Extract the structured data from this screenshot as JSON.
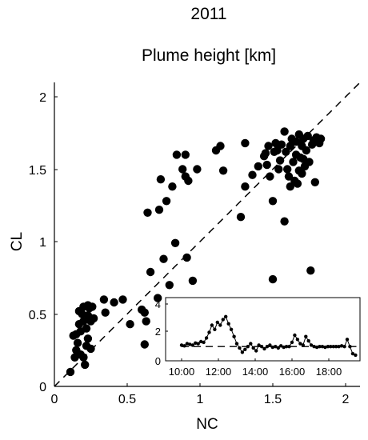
{
  "chart_data": [
    {
      "type": "scatter",
      "suptitle": "2011",
      "title": "Plume height [km]",
      "xlabel": "NC",
      "ylabel": "CL",
      "xlim": [
        0,
        2.1
      ],
      "ylim": [
        0,
        2.1
      ],
      "x_ticks": [
        "0",
        "0.5",
        "1",
        "1.5",
        "2"
      ],
      "y_ticks": [
        "0",
        "0.5",
        "1",
        "1.5",
        "2"
      ],
      "reference_line": {
        "style": "dashed",
        "equation": "y = x"
      },
      "grid": false,
      "series": [
        {
          "marker": "filled-circle",
          "color": "#000000",
          "points": [
            [
              0.11,
              0.1
            ],
            [
              0.14,
              0.2
            ],
            [
              0.15,
              0.25
            ],
            [
              0.16,
              0.3
            ],
            [
              0.13,
              0.35
            ],
            [
              0.15,
              0.36
            ],
            [
              0.18,
              0.22
            ],
            [
              0.18,
              0.38
            ],
            [
              0.17,
              0.52
            ],
            [
              0.19,
              0.5
            ],
            [
              0.2,
              0.45
            ],
            [
              0.2,
              0.55
            ],
            [
              0.2,
              0.2
            ],
            [
              0.21,
              0.15
            ],
            [
              0.22,
              0.28
            ],
            [
              0.22,
              0.4
            ],
            [
              0.23,
              0.33
            ],
            [
              0.23,
              0.49
            ],
            [
              0.23,
              0.56
            ],
            [
              0.24,
              0.54
            ],
            [
              0.25,
              0.26
            ],
            [
              0.25,
              0.45
            ],
            [
              0.26,
              0.55
            ],
            [
              0.27,
              0.47
            ],
            [
              0.17,
              0.43
            ],
            [
              0.35,
              0.51
            ],
            [
              0.34,
              0.6
            ],
            [
              0.41,
              0.58
            ],
            [
              0.47,
              0.6
            ],
            [
              0.52,
              0.43
            ],
            [
              0.6,
              0.53
            ],
            [
              0.62,
              0.51
            ],
            [
              0.63,
              0.45
            ],
            [
              0.62,
              0.29
            ],
            [
              0.64,
              1.2
            ],
            [
              0.66,
              0.79
            ],
            [
              0.71,
              0.61
            ],
            [
              0.72,
              1.22
            ],
            [
              0.73,
              1.43
            ],
            [
              0.75,
              0.88
            ],
            [
              0.77,
              1.28
            ],
            [
              0.79,
              0.7
            ],
            [
              0.81,
              1.38
            ],
            [
              0.84,
              1.6
            ],
            [
              0.83,
              0.99
            ],
            [
              0.88,
              1.5
            ],
            [
              0.9,
              1.6
            ],
            [
              0.92,
              1.42
            ],
            [
              0.9,
              1.45
            ],
            [
              0.95,
              0.73
            ],
            [
              0.91,
              0.89
            ],
            [
              0.98,
              1.5
            ],
            [
              1.11,
              1.63
            ],
            [
              1.14,
              1.66
            ],
            [
              1.16,
              1.49
            ],
            [
              1.28,
              1.17
            ],
            [
              1.31,
              1.38
            ],
            [
              1.31,
              1.68
            ],
            [
              1.36,
              1.46
            ],
            [
              1.4,
              1.52
            ],
            [
              1.44,
              1.59
            ],
            [
              1.45,
              1.61
            ],
            [
              1.46,
              1.53
            ],
            [
              1.47,
              1.66
            ],
            [
              1.48,
              1.45
            ],
            [
              1.5,
              1.28
            ],
            [
              1.5,
              0.74
            ],
            [
              1.51,
              1.62
            ],
            [
              1.52,
              1.68
            ],
            [
              1.53,
              1.63
            ],
            [
              1.54,
              1.5
            ],
            [
              1.55,
              1.56
            ],
            [
              1.56,
              1.67
            ],
            [
              1.58,
              1.14
            ],
            [
              1.58,
              1.76
            ],
            [
              1.59,
              1.62
            ],
            [
              1.6,
              1.5
            ],
            [
              1.61,
              1.45
            ],
            [
              1.62,
              1.66
            ],
            [
              1.62,
              1.38
            ],
            [
              1.63,
              1.71
            ],
            [
              1.64,
              1.55
            ],
            [
              1.65,
              1.42
            ],
            [
              1.66,
              1.69
            ],
            [
              1.66,
              1.6
            ],
            [
              1.67,
              1.4
            ],
            [
              1.68,
              1.74
            ],
            [
              1.69,
              1.58
            ],
            [
              1.7,
              1.47
            ],
            [
              1.7,
              1.66
            ],
            [
              1.71,
              1.71
            ],
            [
              1.72,
              1.52
            ],
            [
              1.73,
              1.63
            ],
            [
              1.74,
              1.73
            ],
            [
              1.75,
              1.55
            ],
            [
              1.76,
              0.8
            ],
            [
              1.77,
              1.67
            ],
            [
              1.78,
              1.7
            ],
            [
              1.79,
              1.41
            ],
            [
              1.8,
              1.72
            ],
            [
              1.82,
              1.68
            ],
            [
              1.83,
              1.71
            ],
            [
              1.71,
              1.57
            ],
            [
              1.68,
              1.49
            ]
          ]
        }
      ]
    },
    {
      "type": "line",
      "role": "inset",
      "x_ticks": [
        "10:00",
        "12:00",
        "14:00",
        "16:00",
        "18:00"
      ],
      "y_ticks": [
        "0",
        "2",
        "4"
      ],
      "xlim_hours": [
        10,
        19.5
      ],
      "ylim": [
        0,
        4
      ],
      "reference_line": {
        "style": "dashed",
        "y": 1
      },
      "series": [
        {
          "marker": "small-filled-circle",
          "color": "#000000",
          "points": [
            [
              10.0,
              1.1
            ],
            [
              10.15,
              1.05
            ],
            [
              10.3,
              1.2
            ],
            [
              10.45,
              1.15
            ],
            [
              10.6,
              1.1
            ],
            [
              10.75,
              1.25
            ],
            [
              10.9,
              1.2
            ],
            [
              11.05,
              1.35
            ],
            [
              11.2,
              1.3
            ],
            [
              11.35,
              1.6
            ],
            [
              11.5,
              2.0
            ],
            [
              11.65,
              2.5
            ],
            [
              11.8,
              2.2
            ],
            [
              11.95,
              2.7
            ],
            [
              12.1,
              2.5
            ],
            [
              12.25,
              2.9
            ],
            [
              12.4,
              3.1
            ],
            [
              12.55,
              2.6
            ],
            [
              12.7,
              2.2
            ],
            [
              12.85,
              1.7
            ],
            [
              13.0,
              1.2
            ],
            [
              13.15,
              0.9
            ],
            [
              13.3,
              0.6
            ],
            [
              13.45,
              0.8
            ],
            [
              13.6,
              1.0
            ],
            [
              13.75,
              1.2
            ],
            [
              13.9,
              0.9
            ],
            [
              14.05,
              0.7
            ],
            [
              14.2,
              1.1
            ],
            [
              14.35,
              1.0
            ],
            [
              14.5,
              0.85
            ],
            [
              14.65,
              1.0
            ],
            [
              14.8,
              1.1
            ],
            [
              14.95,
              0.95
            ],
            [
              15.1,
              1.0
            ],
            [
              15.25,
              0.9
            ],
            [
              15.4,
              1.05
            ],
            [
              15.55,
              0.95
            ],
            [
              15.7,
              1.0
            ],
            [
              15.85,
              1.0
            ],
            [
              16.0,
              1.3
            ],
            [
              16.15,
              1.8
            ],
            [
              16.3,
              1.5
            ],
            [
              16.45,
              1.2
            ],
            [
              16.6,
              1.1
            ],
            [
              16.75,
              1.7
            ],
            [
              16.9,
              1.4
            ],
            [
              17.05,
              1.1
            ],
            [
              17.2,
              1.0
            ],
            [
              17.35,
              0.95
            ],
            [
              17.5,
              1.0
            ],
            [
              17.65,
              1.0
            ],
            [
              17.8,
              0.95
            ],
            [
              17.95,
              1.0
            ],
            [
              18.1,
              1.0
            ],
            [
              18.25,
              1.0
            ],
            [
              18.4,
              1.0
            ],
            [
              18.55,
              1.0
            ],
            [
              18.7,
              1.05
            ],
            [
              18.85,
              1.0
            ],
            [
              19.0,
              1.5
            ],
            [
              19.15,
              1.0
            ],
            [
              19.3,
              0.5
            ],
            [
              19.45,
              0.4
            ]
          ]
        }
      ]
    }
  ]
}
